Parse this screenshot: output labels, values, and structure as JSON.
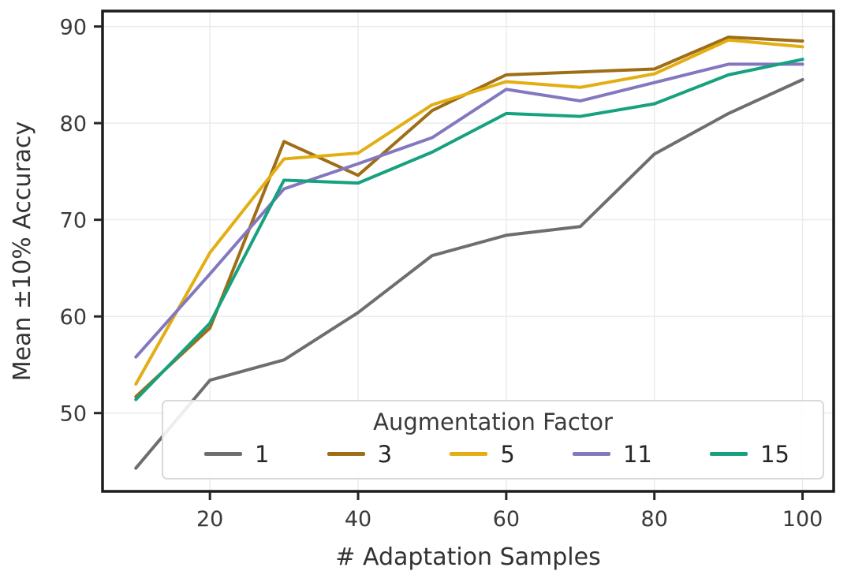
{
  "chart_data": {
    "type": "line",
    "title": "",
    "xlabel": "# Adaptation Samples",
    "ylabel": "Mean ±10% Accuracy",
    "x": [
      10,
      20,
      30,
      40,
      50,
      60,
      70,
      80,
      90,
      100
    ],
    "xticks": [
      20,
      40,
      60,
      80,
      100
    ],
    "yticks": [
      50,
      60,
      70,
      80,
      90
    ],
    "xlim": [
      5.5,
      104.2
    ],
    "ylim": [
      41.9,
      91.6
    ],
    "grid": true,
    "legend": {
      "title": "Augmentation Factor",
      "position": "lower center, inside axes, horizontal"
    },
    "series": [
      {
        "name": "1",
        "color": "#6e6e6e",
        "values": [
          44.3,
          53.4,
          55.5,
          60.4,
          66.3,
          68.4,
          69.3,
          76.8,
          81.0,
          84.5
        ]
      },
      {
        "name": "3",
        "color": "#9e6d16",
        "values": [
          51.7,
          58.8,
          78.1,
          74.6,
          81.3,
          85.0,
          85.3,
          85.6,
          88.9,
          88.5
        ]
      },
      {
        "name": "5",
        "color": "#e3ae14",
        "values": [
          53.0,
          66.6,
          76.3,
          76.9,
          81.9,
          84.3,
          83.7,
          85.1,
          88.6,
          87.9
        ]
      },
      {
        "name": "11",
        "color": "#8378c0",
        "values": [
          55.8,
          64.4,
          73.2,
          75.8,
          78.5,
          83.5,
          82.3,
          84.2,
          86.1,
          86.1
        ]
      },
      {
        "name": "15",
        "color": "#16a17f",
        "values": [
          51.4,
          59.3,
          74.1,
          73.8,
          77.0,
          81.0,
          80.7,
          82.0,
          85.0,
          86.6
        ]
      }
    ]
  }
}
